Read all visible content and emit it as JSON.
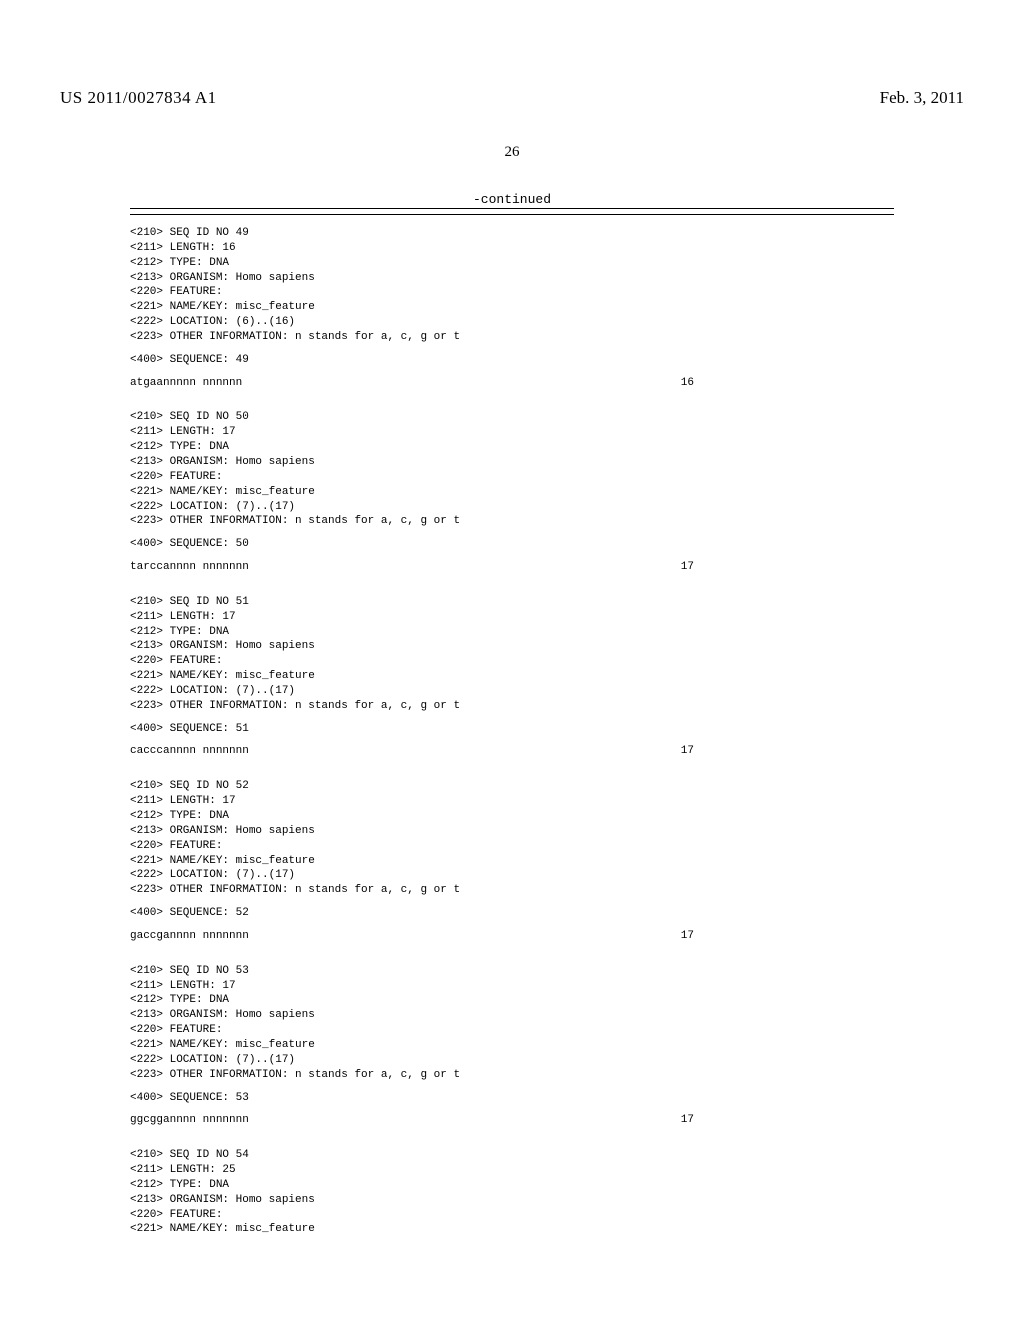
{
  "header": {
    "pub_number": "US 2011/0027834 A1",
    "pub_date": "Feb. 3, 2011",
    "page_number": "26",
    "continued": "-continued"
  },
  "sequences": [
    {
      "id": "49",
      "length": "16",
      "type": "DNA",
      "organism": "Homo sapiens",
      "name_key": "misc_feature",
      "location": "(6)..(16)",
      "other_info": "n stands for a, c, g or t",
      "seq_text": "atgaannnnn nnnnnn",
      "seq_len": "16"
    },
    {
      "id": "50",
      "length": "17",
      "type": "DNA",
      "organism": "Homo sapiens",
      "name_key": "misc_feature",
      "location": "(7)..(17)",
      "other_info": "n stands for a, c, g or t",
      "seq_text": "tarccannnn nnnnnnn",
      "seq_len": "17"
    },
    {
      "id": "51",
      "length": "17",
      "type": "DNA",
      "organism": "Homo sapiens",
      "name_key": "misc_feature",
      "location": "(7)..(17)",
      "other_info": "n stands for a, c, g or t",
      "seq_text": "cacccannnn nnnnnnn",
      "seq_len": "17"
    },
    {
      "id": "52",
      "length": "17",
      "type": "DNA",
      "organism": "Homo sapiens",
      "name_key": "misc_feature",
      "location": "(7)..(17)",
      "other_info": "n stands for a, c, g or t",
      "seq_text": "gaccgannnn nnnnnnn",
      "seq_len": "17"
    },
    {
      "id": "53",
      "length": "17",
      "type": "DNA",
      "organism": "Homo sapiens",
      "name_key": "misc_feature",
      "location": "(7)..(17)",
      "other_info": "n stands for a, c, g or t",
      "seq_text": "ggcggannnn nnnnnnn",
      "seq_len": "17"
    },
    {
      "id": "54",
      "length": "25",
      "type": "DNA",
      "organism": "Homo sapiens",
      "name_key": "misc_feature",
      "partial": true
    }
  ],
  "labels": {
    "seq_id_no": "<210> SEQ ID NO ",
    "length": "<211> LENGTH: ",
    "type": "<212> TYPE: ",
    "organism": "<213> ORGANISM: ",
    "feature": "<220> FEATURE:",
    "name_key": "<221> NAME/KEY: ",
    "location": "<222> LOCATION: ",
    "other_info": "<223> OTHER INFORMATION: ",
    "sequence": "<400> SEQUENCE: "
  }
}
